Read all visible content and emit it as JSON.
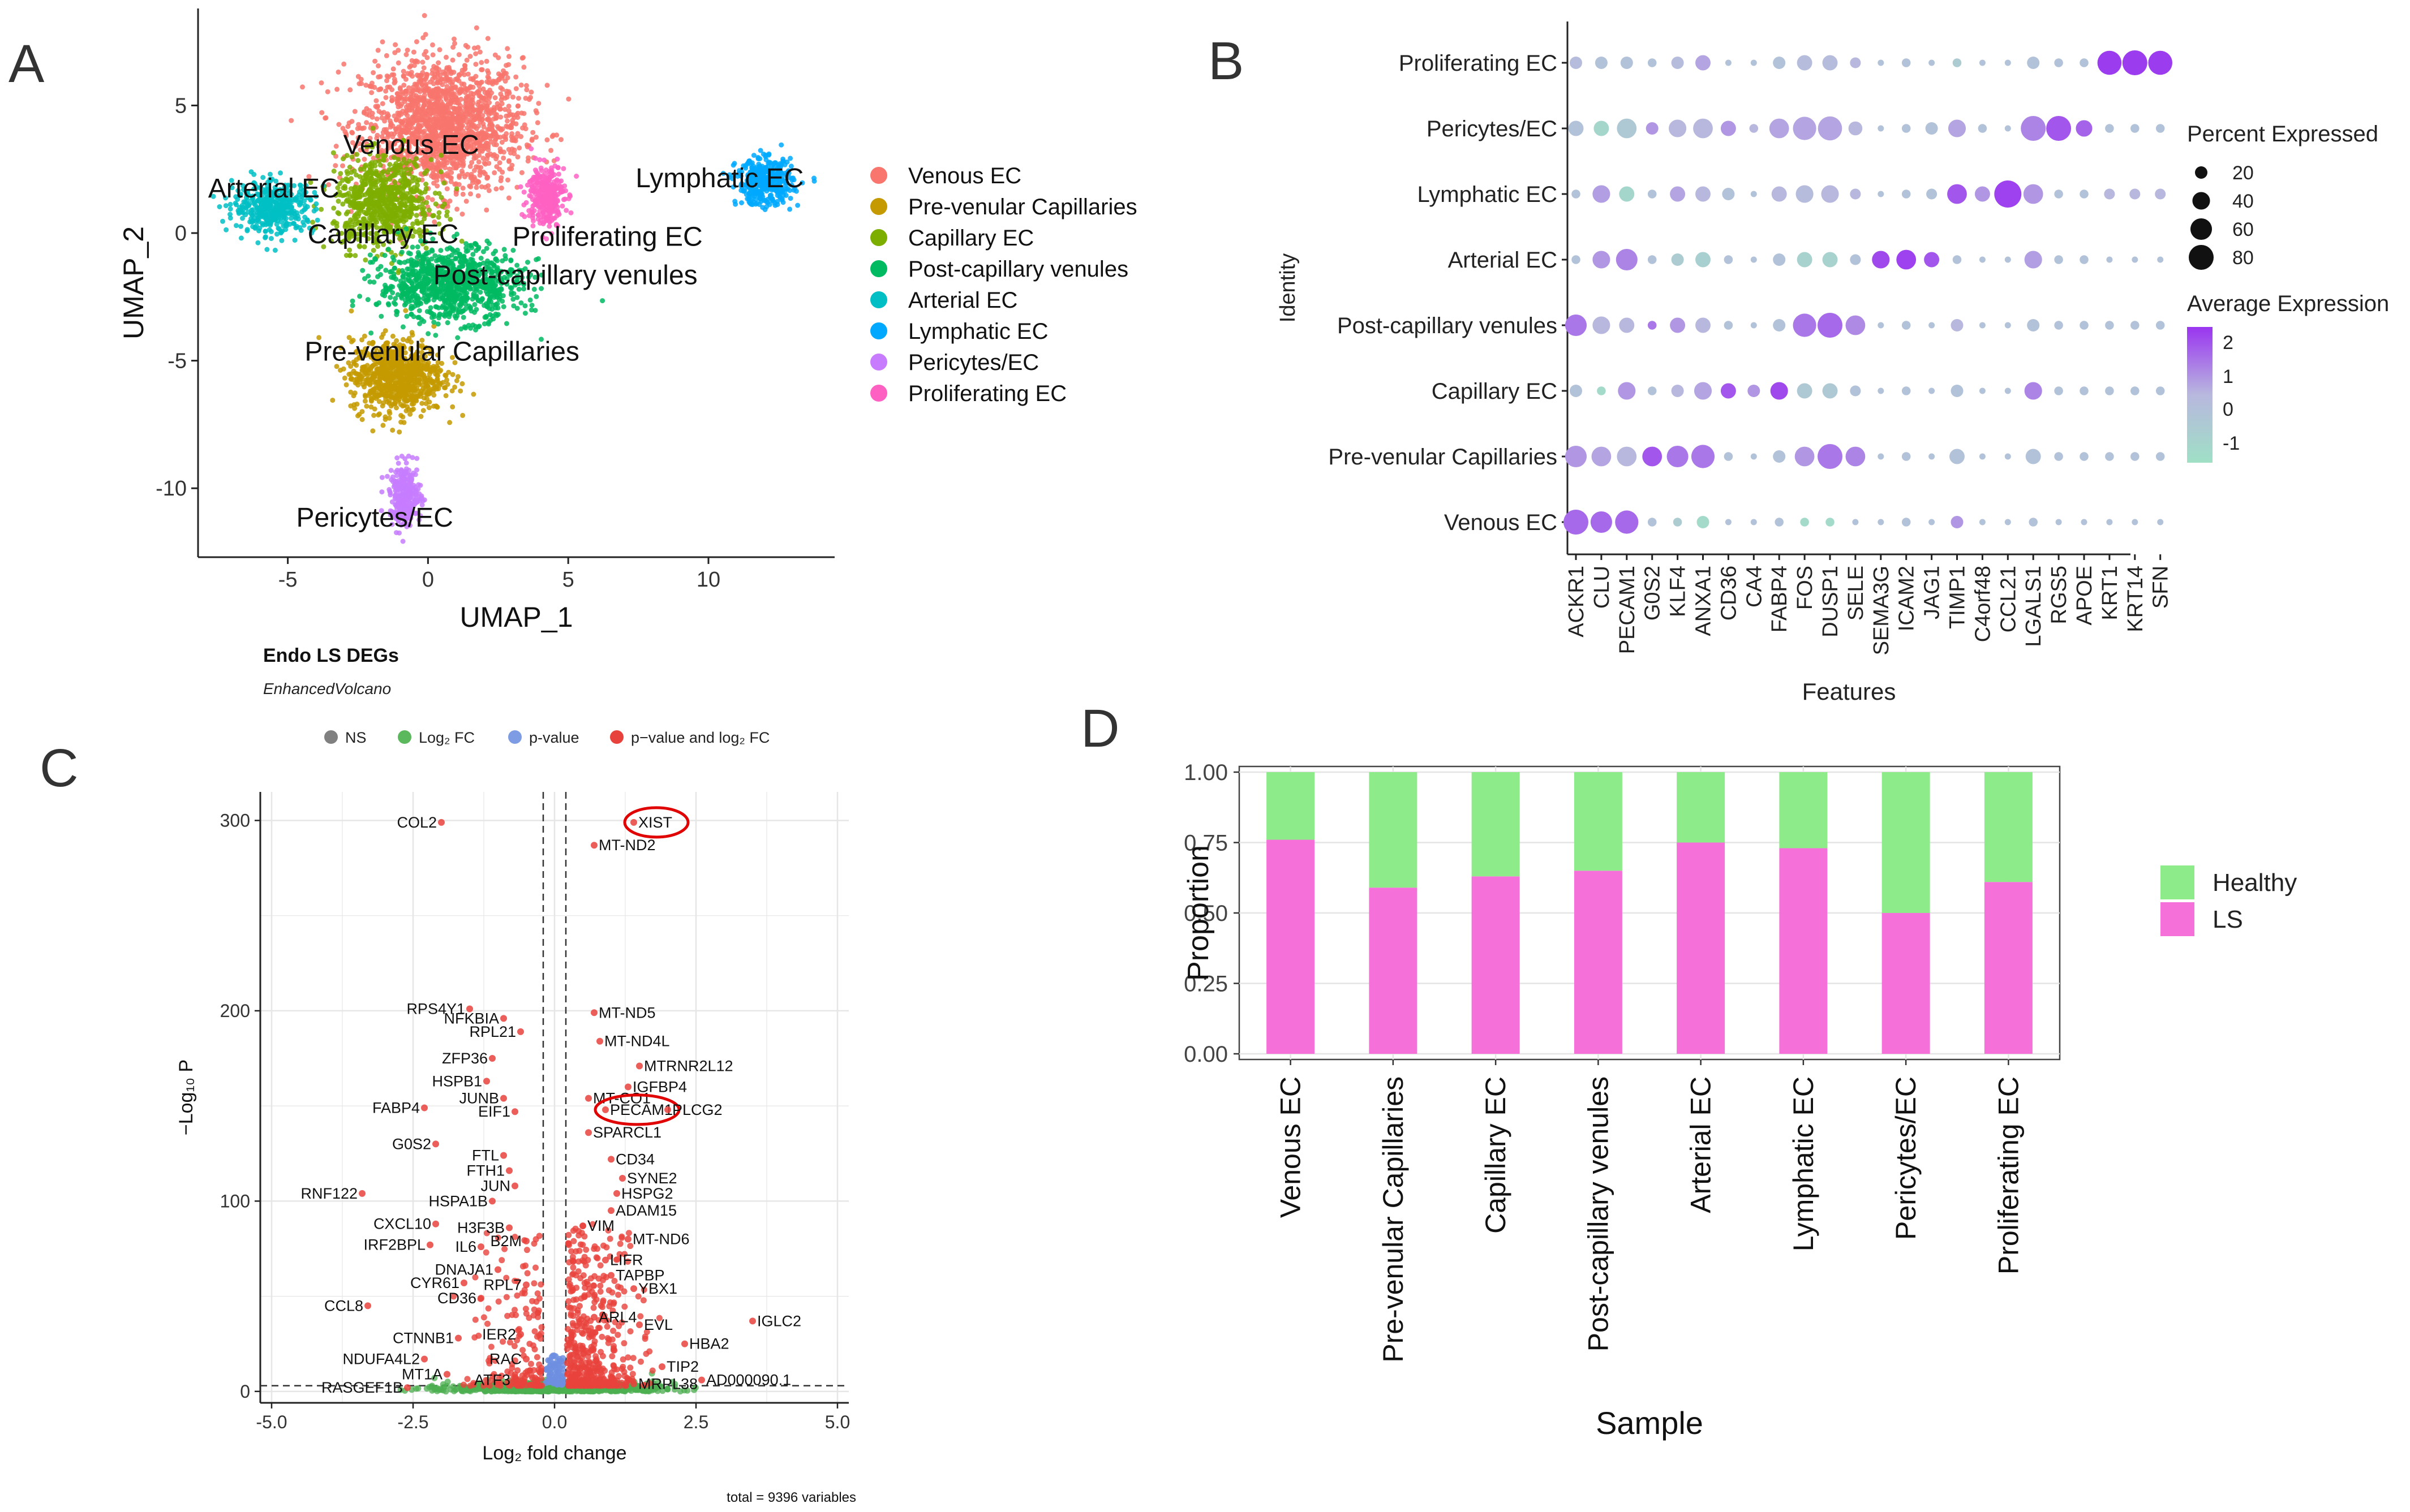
{
  "panels": {
    "a": "A",
    "b": "B",
    "c": "C",
    "d": "D"
  },
  "chart_data": [
    {
      "panel": "A",
      "type": "scatter",
      "xlabel": "UMAP_1",
      "ylabel": "UMAP_2",
      "xticks": [
        "-5",
        "0",
        "5",
        "10"
      ],
      "yticks": [
        "5",
        "0",
        "-5",
        "-10"
      ],
      "xlim": [
        -8.2,
        14.5
      ],
      "ylim": [
        -12.7,
        8.8
      ],
      "legend": [
        {
          "name": "Venous EC",
          "color": "#F8766D"
        },
        {
          "name": "Pre-venular Capillaries",
          "color": "#C49A00"
        },
        {
          "name": "Capillary EC",
          "color": "#7CAE00"
        },
        {
          "name": "Post-capillary venules",
          "color": "#00BA62"
        },
        {
          "name": "Arterial EC",
          "color": "#00BFC4"
        },
        {
          "name": "Lymphatic EC",
          "color": "#00A9FF"
        },
        {
          "name": "Pericytes/EC",
          "color": "#C77CFF"
        },
        {
          "name": "Proliferating EC",
          "color": "#FF61C3"
        }
      ],
      "clusters": [
        {
          "name": "Venous EC",
          "center": [
            0.5,
            4.2
          ],
          "spread": [
            2.6,
            2.4
          ],
          "n": 420
        },
        {
          "name": "Pre-venular Capillaries",
          "center": [
            -1.1,
            -5.6
          ],
          "spread": [
            1.5,
            1.3
          ],
          "n": 200
        },
        {
          "name": "Capillary EC",
          "center": [
            -1.6,
            1.2
          ],
          "spread": [
            1.6,
            1.6
          ],
          "n": 180
        },
        {
          "name": "Post-capillary venules",
          "center": [
            0.8,
            -2.0
          ],
          "spread": [
            2.3,
            1.3
          ],
          "n": 240
        },
        {
          "name": "Arterial EC",
          "center": [
            -5.5,
            1.0
          ],
          "spread": [
            1.3,
            0.9
          ],
          "n": 110
        },
        {
          "name": "Lymphatic EC",
          "center": [
            12.0,
            2.0
          ],
          "spread": [
            0.9,
            0.8
          ],
          "n": 110
        },
        {
          "name": "Pericytes/EC",
          "center": [
            -0.8,
            -10.3
          ],
          "spread": [
            0.5,
            1.1
          ],
          "n": 70
        },
        {
          "name": "Proliferating EC",
          "center": [
            4.2,
            1.5
          ],
          "spread": [
            0.6,
            1.1
          ],
          "n": 80
        }
      ],
      "annotations": [
        {
          "text": "Venous EC",
          "x": -0.6,
          "y": 3.1
        },
        {
          "text": "Arterial EC",
          "x": -5.5,
          "y": 1.4
        },
        {
          "text": "Lymphatic EC",
          "x": 10.4,
          "y": 1.8
        },
        {
          "text": "Capillary EC",
          "x": -1.6,
          "y": -0.4
        },
        {
          "text": "Proliferating EC",
          "x": 6.4,
          "y": -0.5
        },
        {
          "text": "Post-capillary venules",
          "x": 4.9,
          "y": -2.0
        },
        {
          "text": "Pre-venular Capillaries",
          "x": 0.5,
          "y": -5.0
        },
        {
          "text": "Pericytes/EC",
          "x": -1.9,
          "y": -11.5
        }
      ]
    },
    {
      "panel": "B",
      "type": "dot",
      "xlabel": "Features",
      "ylabel": "Identity",
      "identities": [
        "Proliferating EC",
        "Pericytes/EC",
        "Lymphatic EC",
        "Arterial EC",
        "Post-capillary venules",
        "Capillary EC",
        "Pre-venular Capillaries",
        "Venous EC"
      ],
      "features": [
        "ACKR1",
        "CLU",
        "PECAM1",
        "G0S2",
        "KLF4",
        "ANXA1",
        "CD36",
        "CA4",
        "FABP4",
        "FOS",
        "DUSP1",
        "SELE",
        "SEMA3G",
        "ICAM2",
        "JAG1",
        "TIMP1",
        "C4orf48",
        "CCL21",
        "LGALS1",
        "RGS5",
        "APOE",
        "KRT1",
        "KRT14",
        "SFN"
      ],
      "percent_expressed": [
        [
          20,
          20,
          20,
          10,
          20,
          30,
          5,
          5,
          20,
          30,
          30,
          15,
          5,
          10,
          5,
          10,
          5,
          5,
          20,
          10,
          10,
          75,
          80,
          75
        ],
        [
          30,
          30,
          50,
          20,
          40,
          50,
          30,
          10,
          50,
          70,
          75,
          25,
          5,
          10,
          20,
          40,
          10,
          5,
          80,
          80,
          35,
          10,
          10,
          10
        ],
        [
          10,
          40,
          30,
          10,
          30,
          30,
          20,
          5,
          30,
          40,
          40,
          15,
          5,
          10,
          15,
          50,
          30,
          95,
          50,
          10,
          10,
          15,
          15,
          15
        ],
        [
          10,
          40,
          60,
          10,
          20,
          30,
          10,
          5,
          20,
          30,
          30,
          15,
          40,
          50,
          30,
          10,
          5,
          5,
          40,
          10,
          10,
          5,
          5,
          5
        ],
        [
          60,
          40,
          30,
          10,
          30,
          30,
          10,
          5,
          20,
          70,
          80,
          50,
          5,
          10,
          5,
          20,
          5,
          5,
          20,
          10,
          10,
          10,
          10,
          10
        ],
        [
          20,
          10,
          40,
          10,
          20,
          40,
          30,
          20,
          40,
          30,
          30,
          15,
          5,
          10,
          5,
          20,
          5,
          5,
          40,
          10,
          10,
          10,
          10,
          10
        ],
        [
          60,
          50,
          50,
          50,
          60,
          70,
          10,
          5,
          20,
          50,
          80,
          50,
          5,
          10,
          5,
          30,
          5,
          5,
          30,
          10,
          10,
          10,
          10,
          10
        ],
        [
          80,
          60,
          70,
          10,
          10,
          20,
          5,
          5,
          10,
          10,
          10,
          5,
          5,
          10,
          5,
          20,
          5,
          5,
          10,
          5,
          5,
          5,
          5,
          5
        ]
      ],
      "average_expression": [
        [
          0.3,
          0.0,
          0.0,
          0.0,
          0.3,
          0.8,
          0.0,
          0.0,
          0.0,
          0.3,
          0.3,
          0.5,
          0.0,
          0.0,
          0.0,
          -0.5,
          0.0,
          0.0,
          0.0,
          0.0,
          0.0,
          2.4,
          2.4,
          2.4
        ],
        [
          0.0,
          -1.0,
          -0.3,
          1.0,
          0.5,
          0.5,
          1.0,
          0.5,
          0.8,
          0.8,
          0.8,
          0.5,
          0.0,
          0.0,
          0.0,
          0.8,
          0.0,
          0.0,
          1.3,
          2.0,
          1.8,
          0.0,
          0.0,
          0.0
        ],
        [
          0.0,
          0.9,
          -1.0,
          0.0,
          0.8,
          0.5,
          0.0,
          0.0,
          0.5,
          0.3,
          0.5,
          0.5,
          0.0,
          0.0,
          0.0,
          2.0,
          1.0,
          2.3,
          1.0,
          0.0,
          0.0,
          0.5,
          0.5,
          0.5
        ],
        [
          0.0,
          1.0,
          1.3,
          0.0,
          -0.5,
          -0.7,
          0.0,
          0.0,
          0.0,
          -0.8,
          -0.8,
          0.0,
          2.2,
          2.3,
          2.0,
          0.0,
          0.0,
          0.0,
          0.9,
          0.0,
          0.0,
          0.0,
          0.0,
          0.0
        ],
        [
          1.5,
          0.5,
          0.5,
          1.5,
          1.0,
          0.5,
          0.0,
          0.0,
          0.0,
          1.5,
          1.7,
          1.2,
          0.0,
          0.0,
          0.0,
          0.5,
          0.0,
          0.0,
          0.0,
          0.0,
          0.0,
          0.0,
          0.0,
          0.0
        ],
        [
          0.0,
          -1.2,
          1.0,
          0.0,
          0.5,
          0.8,
          2.0,
          1.0,
          2.2,
          -0.3,
          -0.3,
          0.0,
          0.0,
          0.0,
          0.0,
          0.0,
          0.0,
          0.0,
          1.3,
          0.0,
          0.0,
          0.0,
          0.0,
          0.0
        ],
        [
          1.0,
          0.8,
          0.5,
          2.0,
          1.5,
          1.5,
          0.0,
          0.0,
          0.0,
          1.0,
          1.5,
          1.3,
          0.0,
          0.0,
          0.0,
          0.0,
          0.0,
          0.0,
          0.0,
          0.0,
          0.0,
          0.0,
          0.0,
          0.0
        ],
        [
          1.7,
          1.7,
          1.7,
          0.0,
          -0.5,
          -1.2,
          0.0,
          0.0,
          0.0,
          -1.2,
          -1.2,
          0.0,
          0.0,
          0.0,
          0.0,
          1.0,
          0.0,
          0.0,
          0.0,
          0.0,
          0.0,
          0.0,
          0.0,
          0.0
        ]
      ],
      "legend_size_title": "Percent Expressed",
      "legend_size": [
        20,
        40,
        60,
        80
      ],
      "legend_color_title": "Average Expression",
      "legend_color_ticks": [
        "2",
        "1",
        "0",
        "-1"
      ],
      "color_range": [
        -1.5,
        2.5
      ],
      "color_low": "#9FE0C6",
      "color_high": "#9A35F0"
    },
    {
      "panel": "C",
      "type": "scatter",
      "title": "Endo LS DEGs",
      "subtitle": "EnhancedVolcano",
      "legend": [
        {
          "name": "NS",
          "color": "#808080"
        },
        {
          "name": "Log₂ FC",
          "color": "#5CB85C"
        },
        {
          "name": "p-value",
          "color": "#7E9CE4"
        },
        {
          "name": "p−value and log₂ FC",
          "color": "#E8423C"
        }
      ],
      "xlabel": "Log₂ fold change",
      "ylabel": "−Log₁₀ P",
      "xlim": [
        -5.2,
        5.2
      ],
      "ylim": [
        -6,
        315
      ],
      "xticks": [
        -5.0,
        -2.5,
        0.0,
        2.5,
        5.0
      ],
      "xtick_labels": [
        "-5.0",
        "-2.5",
        "0.0",
        "2.5",
        "5.0"
      ],
      "yticks": [
        0,
        100,
        200,
        300
      ],
      "fc_cutoff": 0.2,
      "p_cutoff_y": 3,
      "caption": "total = 9396 variables",
      "circled": [
        "XIST",
        "PECAM1"
      ],
      "genes": [
        {
          "label": "COL2",
          "x": -2.0,
          "y": 299
        },
        {
          "label": "XIST",
          "x": 1.4,
          "y": 299
        },
        {
          "label": "MT-ND2",
          "x": 0.7,
          "y": 287
        },
        {
          "label": "RPS4Y1",
          "x": -1.5,
          "y": 201
        },
        {
          "label": "NFKBIA",
          "x": -0.9,
          "y": 196
        },
        {
          "label": "RPL21",
          "x": -0.6,
          "y": 189
        },
        {
          "label": "ZFP36",
          "x": -1.1,
          "y": 175
        },
        {
          "label": "HSPB1",
          "x": -1.2,
          "y": 163
        },
        {
          "label": "JUNB",
          "x": -0.9,
          "y": 154
        },
        {
          "label": "EIF1",
          "x": -0.7,
          "y": 147
        },
        {
          "label": "FABP4",
          "x": -2.3,
          "y": 149
        },
        {
          "label": "G0S2",
          "x": -2.1,
          "y": 130
        },
        {
          "label": "FTL",
          "x": -0.9,
          "y": 124
        },
        {
          "label": "FTH1",
          "x": -0.8,
          "y": 116
        },
        {
          "label": "JUN",
          "x": -0.7,
          "y": 108
        },
        {
          "label": "HSPA1B",
          "x": -1.1,
          "y": 100
        },
        {
          "label": "RNF122",
          "x": -3.4,
          "y": 104
        },
        {
          "label": "CXCL10",
          "x": -2.1,
          "y": 88
        },
        {
          "label": "IRF2BPL",
          "x": -2.2,
          "y": 77
        },
        {
          "label": "H3F3B",
          "x": -0.8,
          "y": 86
        },
        {
          "label": "B2M",
          "x": -0.5,
          "y": 79
        },
        {
          "label": "IL6",
          "x": -1.3,
          "y": 76
        },
        {
          "label": "DNAJA1",
          "x": -1.0,
          "y": 64
        },
        {
          "label": "CYR61",
          "x": -1.6,
          "y": 57
        },
        {
          "label": "RPL7",
          "x": -0.5,
          "y": 56
        },
        {
          "label": "CD36",
          "x": -1.3,
          "y": 49
        },
        {
          "label": "CCL8",
          "x": -3.3,
          "y": 45
        },
        {
          "label": "CTNNB1",
          "x": -1.7,
          "y": 28
        },
        {
          "label": "IER2",
          "x": -0.6,
          "y": 30
        },
        {
          "label": "NDUFA4L2",
          "x": -2.3,
          "y": 17
        },
        {
          "label": "RAC",
          "x": -0.5,
          "y": 17
        },
        {
          "label": "MT1A",
          "x": -1.9,
          "y": 9
        },
        {
          "label": "ATF3",
          "x": -0.7,
          "y": 6
        },
        {
          "label": "RASGEF1B",
          "x": -2.6,
          "y": 2
        },
        {
          "label": "MT-ND5",
          "x": 0.7,
          "y": 199
        },
        {
          "label": "MT-ND4L",
          "x": 0.8,
          "y": 184
        },
        {
          "label": "MTRNR2L12",
          "x": 1.5,
          "y": 171
        },
        {
          "label": "IGFBP4",
          "x": 1.3,
          "y": 160
        },
        {
          "label": "MT-CO1",
          "x": 0.6,
          "y": 154
        },
        {
          "label": "PECAM1",
          "x": 0.9,
          "y": 148
        },
        {
          "label": "PLCG2",
          "x": 2.0,
          "y": 148
        },
        {
          "label": "SPARCL1",
          "x": 0.6,
          "y": 136
        },
        {
          "label": "CD34",
          "x": 1.0,
          "y": 122
        },
        {
          "label": "SYNE2",
          "x": 1.2,
          "y": 112
        },
        {
          "label": "HSPG2",
          "x": 1.1,
          "y": 104
        },
        {
          "label": "ADAM15",
          "x": 1.0,
          "y": 95
        },
        {
          "label": "VIM",
          "x": 0.5,
          "y": 87
        },
        {
          "label": "MT-ND6",
          "x": 1.3,
          "y": 80
        },
        {
          "label": "LIFR",
          "x": 0.9,
          "y": 69
        },
        {
          "label": "TAPBP",
          "x": 1.0,
          "y": 61
        },
        {
          "label": "YBX1",
          "x": 1.4,
          "y": 54
        },
        {
          "label": "ARL4",
          "x": 0.7,
          "y": 39
        },
        {
          "label": "EVL",
          "x": 1.5,
          "y": 35
        },
        {
          "label": "IGLC2",
          "x": 3.5,
          "y": 37
        },
        {
          "label": "HBA2",
          "x": 2.3,
          "y": 25
        },
        {
          "label": "TIP2",
          "x": 1.9,
          "y": 13
        },
        {
          "label": "MRPL38",
          "x": 1.4,
          "y": 4
        },
        {
          "label": "AD000090.1",
          "x": 2.6,
          "y": 6
        }
      ]
    },
    {
      "panel": "D",
      "type": "bar",
      "stacked": true,
      "xlabel": "Sample",
      "ylabel": "Proportion",
      "categories": [
        "Venous EC",
        "Pre-venular Capillaries",
        "Capillary EC",
        "Post-capillary venules",
        "Arterial EC",
        "Lymphatic EC",
        "Pericytes/EC",
        "Proliferating EC"
      ],
      "series": [
        {
          "name": "LS",
          "color": "#F670D9",
          "values": [
            0.76,
            0.59,
            0.63,
            0.65,
            0.75,
            0.73,
            0.5,
            0.61
          ]
        },
        {
          "name": "Healthy",
          "color": "#8DEB8A",
          "values": [
            0.24,
            0.41,
            0.37,
            0.35,
            0.25,
            0.27,
            0.5,
            0.39
          ]
        }
      ],
      "ylim": [
        0,
        1.0
      ],
      "yticks": [
        "0.00",
        "0.25",
        "0.50",
        "0.75",
        "1.00"
      ],
      "legend_order": [
        "Healthy",
        "LS"
      ],
      "legend_placement": "right"
    }
  ]
}
